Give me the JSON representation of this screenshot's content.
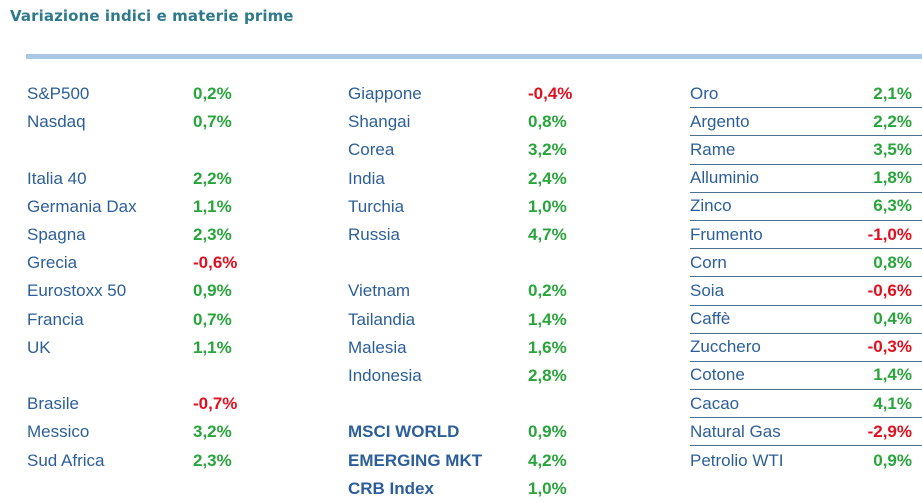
{
  "title": "Variazione indici e materie prime",
  "colors": {
    "positive": "#2aa43c",
    "negative": "#e0101f",
    "label": "#2c5f99",
    "title": "#2f7a8a"
  },
  "columns": [
    {
      "rows": [
        {
          "name": "S&P500",
          "value": "0,2%",
          "sign": "pos"
        },
        {
          "name": "Nasdaq",
          "value": "0,7%",
          "sign": "pos"
        },
        {
          "blank": true
        },
        {
          "name": "Italia 40",
          "value": "2,2%",
          "sign": "pos"
        },
        {
          "name": "Germania Dax",
          "value": "1,1%",
          "sign": "pos"
        },
        {
          "name": "Spagna",
          "value": "2,3%",
          "sign": "pos"
        },
        {
          "name": "Grecia",
          "value": "-0,6%",
          "sign": "neg"
        },
        {
          "name": "Eurostoxx 50",
          "value": "0,9%",
          "sign": "pos"
        },
        {
          "name": "Francia",
          "value": "0,7%",
          "sign": "pos"
        },
        {
          "name": "UK",
          "value": "1,1%",
          "sign": "pos"
        },
        {
          "blank": true
        },
        {
          "name": "Brasile",
          "value": "-0,7%",
          "sign": "neg"
        },
        {
          "name": "Messico",
          "value": "3,2%",
          "sign": "pos"
        },
        {
          "name": "Sud Africa",
          "value": "2,3%",
          "sign": "pos"
        }
      ]
    },
    {
      "rows": [
        {
          "name": "Giappone",
          "value": "-0,4%",
          "sign": "neg"
        },
        {
          "name": "Shangai",
          "value": "0,8%",
          "sign": "pos"
        },
        {
          "name": "Corea",
          "value": "3,2%",
          "sign": "pos"
        },
        {
          "name": "India",
          "value": "2,4%",
          "sign": "pos"
        },
        {
          "name": "Turchia",
          "value": "1,0%",
          "sign": "pos"
        },
        {
          "name": "Russia",
          "value": "4,7%",
          "sign": "pos"
        },
        {
          "blank": true
        },
        {
          "name": "Vietnam",
          "value": "0,2%",
          "sign": "pos"
        },
        {
          "name": "Tailandia",
          "value": "1,4%",
          "sign": "pos"
        },
        {
          "name": "Malesia",
          "value": "1,6%",
          "sign": "pos"
        },
        {
          "name": "Indonesia",
          "value": "2,8%",
          "sign": "pos"
        },
        {
          "blank": true
        },
        {
          "name": "MSCI WORLD",
          "value": "0,9%",
          "sign": "pos",
          "bold": true
        },
        {
          "name": "EMERGING MKT",
          "value": "4,2%",
          "sign": "pos",
          "bold": true
        },
        {
          "name": "CRB Index",
          "value": "1,0%",
          "sign": "pos",
          "bold": true
        }
      ]
    },
    {
      "rows": [
        {
          "name": "Oro",
          "value": "2,1%",
          "sign": "pos",
          "ruled": true
        },
        {
          "name": "Argento",
          "value": "2,2%",
          "sign": "pos"
        },
        {
          "name": "Rame",
          "value": "3,5%",
          "sign": "pos"
        },
        {
          "name": "Alluminio",
          "value": "1,8%",
          "sign": "pos"
        },
        {
          "name": "Zinco",
          "value": "6,3%",
          "sign": "pos"
        },
        {
          "name": "Frumento",
          "value": "-1,0%",
          "sign": "neg"
        },
        {
          "name": "Corn",
          "value": "0,8%",
          "sign": "pos"
        },
        {
          "name": "Soia",
          "value": "-0,6%",
          "sign": "neg"
        },
        {
          "name": "Caffè",
          "value": "0,4%",
          "sign": "pos"
        },
        {
          "name": "Zucchero",
          "value": "-0,3%",
          "sign": "neg"
        },
        {
          "name": "Cotone",
          "value": "1,4%",
          "sign": "pos"
        },
        {
          "name": "Cacao",
          "value": "4,1%",
          "sign": "pos"
        },
        {
          "name": "Natural Gas",
          "value": "-2,9%",
          "sign": "neg"
        },
        {
          "name": "Petrolio WTI",
          "value": "0,9%",
          "sign": "pos"
        }
      ]
    }
  ]
}
